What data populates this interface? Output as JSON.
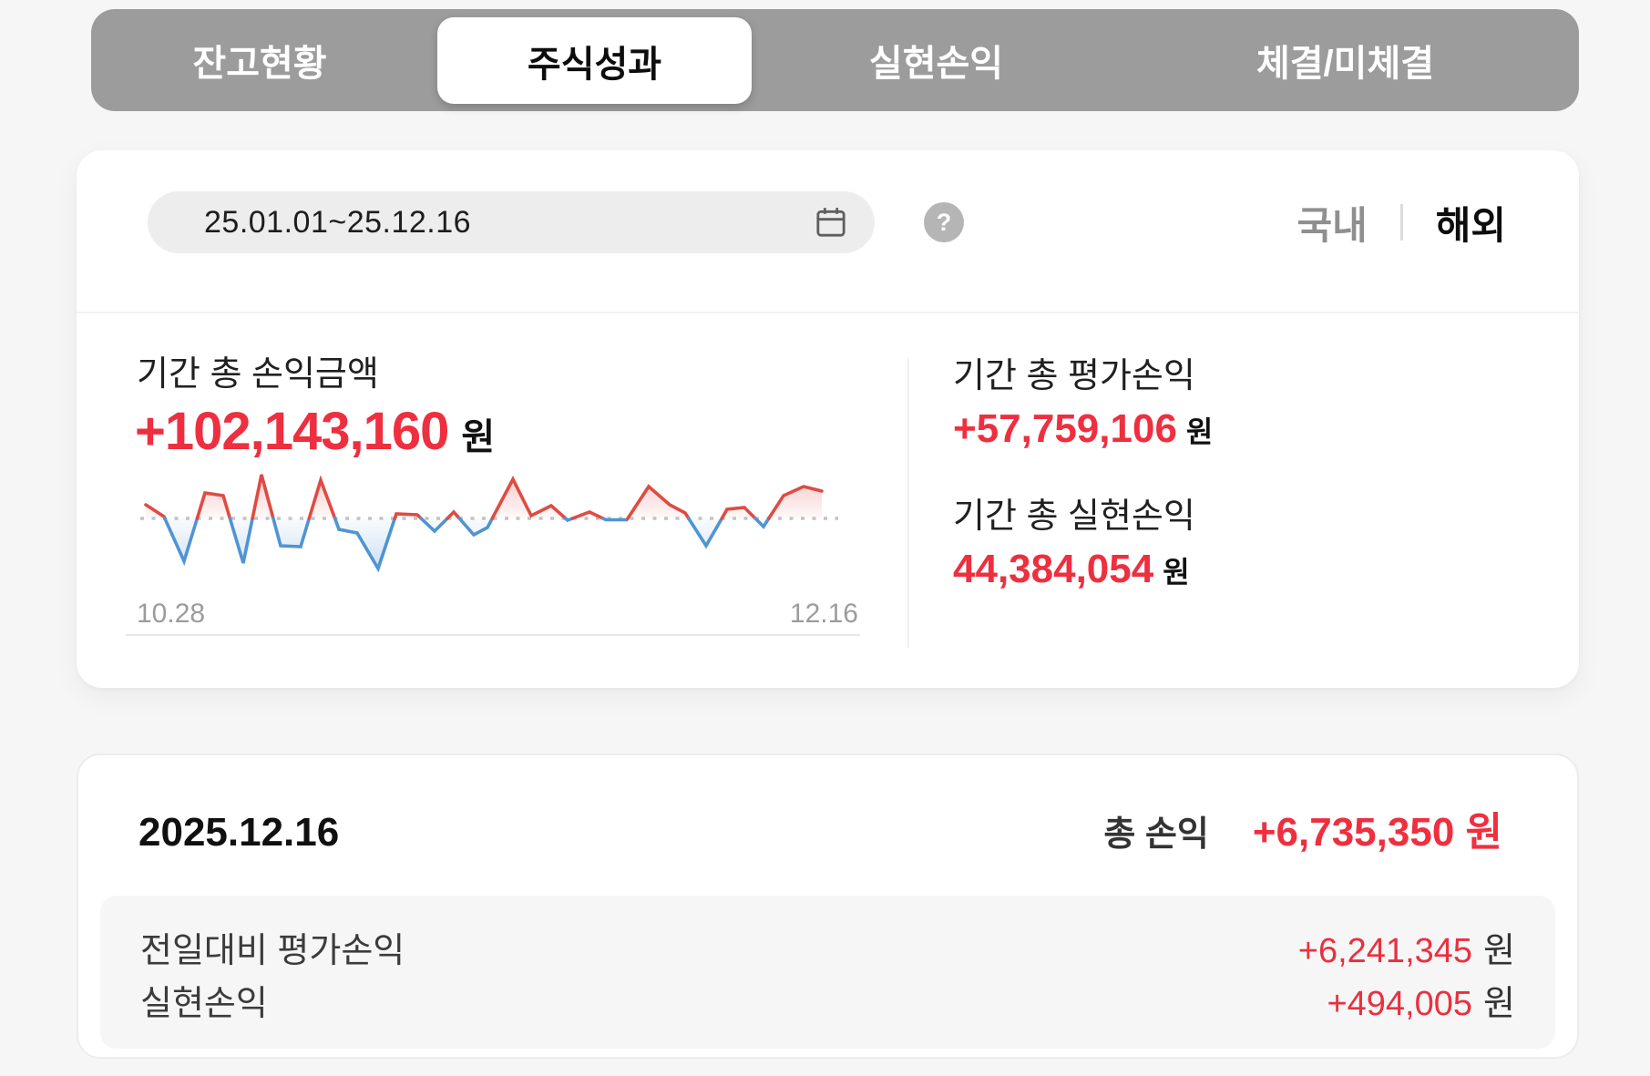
{
  "tabs": {
    "items": [
      {
        "label": "잔고현황",
        "active": false
      },
      {
        "label": "주식성과",
        "active": true
      },
      {
        "label": "실현손익",
        "active": false
      },
      {
        "label": "체결/미체결",
        "active": false
      }
    ]
  },
  "filter": {
    "date_range": "25.01.01~25.12.16",
    "help_glyph": "?",
    "market_domestic": "국내",
    "market_overseas": "해외",
    "market_selected": "해외"
  },
  "summary": {
    "period_total": {
      "label": "기간 총 손익금액",
      "value": "+102,143,160",
      "unit": "원"
    },
    "valuation": {
      "label": "기간 총 평가손익",
      "value": "+57,759,106",
      "unit": "원"
    },
    "realized": {
      "label": "기간 총 실현손익",
      "value": "44,384,054",
      "unit": "원"
    }
  },
  "chart_data": {
    "type": "line",
    "description": "일별 손익 스파크라인: 기준선(0) 위는 빨강, 아래는 파랑, 기준선은 점선",
    "x_axis_labels": [
      "10.28",
      "12.16"
    ],
    "baseline_value": 0,
    "units": "relative-pixels",
    "positive_color": "#df4b43",
    "negative_color": "#4f94d4",
    "baseline_color": "#c3c3c3",
    "points": [
      [
        0,
        15
      ],
      [
        20,
        2
      ],
      [
        42,
        -47
      ],
      [
        65,
        28
      ],
      [
        85,
        25
      ],
      [
        107,
        -49
      ],
      [
        127,
        48
      ],
      [
        148,
        -30
      ],
      [
        170,
        -31
      ],
      [
        192,
        42
      ],
      [
        212,
        -12
      ],
      [
        232,
        -16
      ],
      [
        255,
        -55
      ],
      [
        275,
        5
      ],
      [
        298,
        4
      ],
      [
        317,
        -14
      ],
      [
        338,
        7
      ],
      [
        360,
        -18
      ],
      [
        375,
        -10
      ],
      [
        403,
        43
      ],
      [
        423,
        3
      ],
      [
        445,
        14
      ],
      [
        463,
        -2
      ],
      [
        487,
        7
      ],
      [
        505,
        -1.5
      ],
      [
        528,
        -1.5
      ],
      [
        552,
        35
      ],
      [
        575,
        15
      ],
      [
        592,
        6
      ],
      [
        615,
        -30
      ],
      [
        638,
        10
      ],
      [
        657,
        12
      ],
      [
        678,
        -9
      ],
      [
        700,
        25
      ],
      [
        722,
        35
      ],
      [
        742,
        30
      ]
    ]
  },
  "daily": {
    "date": "2025.12.16",
    "total_label": "총 손익",
    "total_value": "+6,735,350 원",
    "rows": [
      {
        "label": "전일대비 평가손익",
        "value": "+6,241,345",
        "unit": "원"
      },
      {
        "label": "실현손익",
        "value": "+494,005",
        "unit": "원"
      }
    ]
  },
  "colors": {
    "accent_red": "#ee2f3f",
    "tabbar_gray": "#9c9c9c",
    "page_bg": "#f6f6f7"
  }
}
